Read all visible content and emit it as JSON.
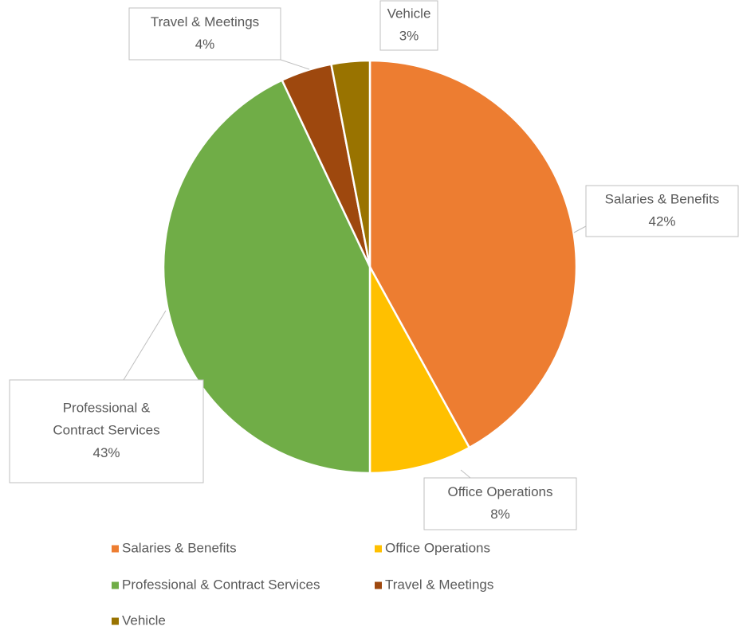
{
  "chart_data": {
    "type": "pie",
    "categories": [
      "Salaries & Benefits",
      "Office Operations",
      "Professional & Contract Services",
      "Travel & Meetings",
      "Vehicle"
    ],
    "values": [
      42,
      8,
      43,
      4,
      3
    ],
    "value_labels": [
      "42%",
      "8%",
      "43%",
      "4%",
      "3%"
    ],
    "colors": [
      "#ED7D31",
      "#FFC000",
      "#70AD47",
      "#9E480E",
      "#997300"
    ],
    "legend": "bottom"
  }
}
